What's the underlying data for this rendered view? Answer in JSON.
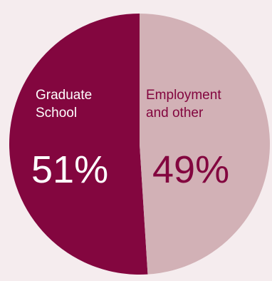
{
  "chart_data": {
    "type": "pie",
    "slices": [
      {
        "label_lines": [
          "Graduate",
          "School"
        ],
        "value": 51,
        "display": "51%",
        "color": "#83063f",
        "text_color": "#ffffff"
      },
      {
        "label_lines": [
          "Employment",
          "and other"
        ],
        "value": 49,
        "display": "49%",
        "color": "#d2b1b6",
        "text_color": "#83063f"
      }
    ],
    "start_position": "top",
    "direction": "counter-clockwise",
    "legend": "none"
  }
}
